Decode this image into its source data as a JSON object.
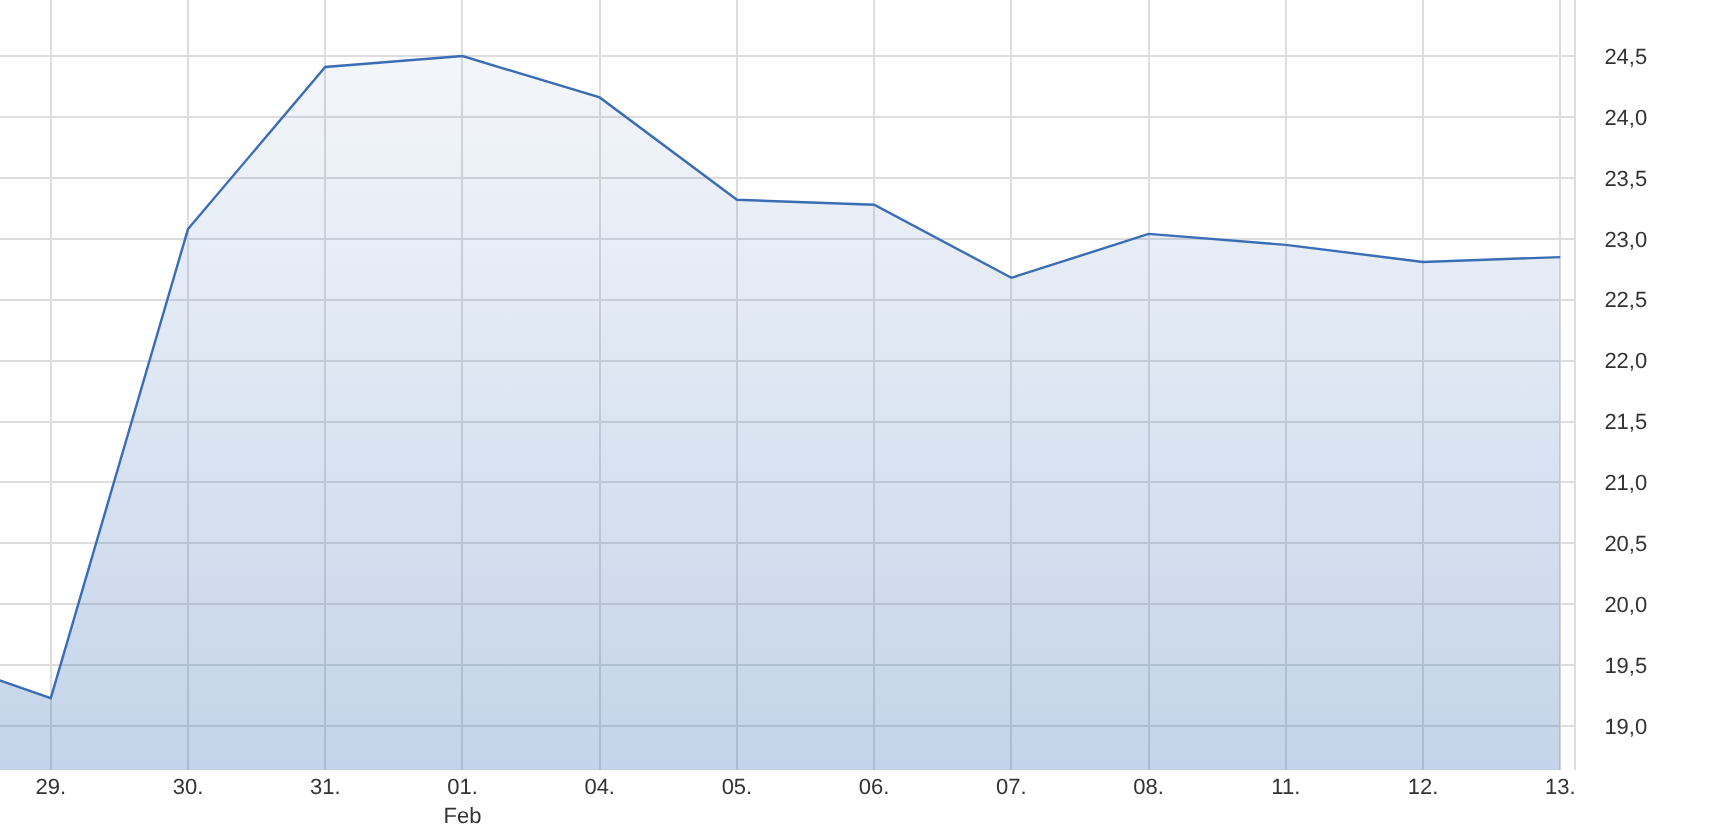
{
  "chart_data": {
    "type": "area",
    "categories": [
      null,
      "29.",
      "30.",
      "31.",
      "01.\nFeb",
      "04.",
      "05.",
      "06.",
      "07.",
      "08.",
      "11.",
      "12.",
      "13."
    ],
    "series": [
      {
        "color": "#3a6db5",
        "values": [
          19.62,
          19.23,
          23.08,
          24.41,
          24.5,
          24.16,
          23.32,
          23.28,
          22.68,
          23.04,
          22.95,
          22.81,
          22.85
        ]
      }
    ],
    "ylim": [
      18.64,
      24.96
    ],
    "yticks": [
      {
        "value": 19,
        "label": "19,0"
      },
      {
        "value": 19.5,
        "label": "19,5"
      },
      {
        "value": 20,
        "label": "20,0"
      },
      {
        "value": 20.5,
        "label": "20,5"
      },
      {
        "value": 21,
        "label": "21,0"
      },
      {
        "value": 21.5,
        "label": "21,5"
      },
      {
        "value": 22,
        "label": "22,0"
      },
      {
        "value": 22.5,
        "label": "22,5"
      },
      {
        "value": 23,
        "label": "23,0"
      },
      {
        "value": 23.5,
        "label": "23,5"
      },
      {
        "value": 24,
        "label": "24,0"
      },
      {
        "value": 24.5,
        "label": "24,5"
      }
    ],
    "grid": true
  }
}
